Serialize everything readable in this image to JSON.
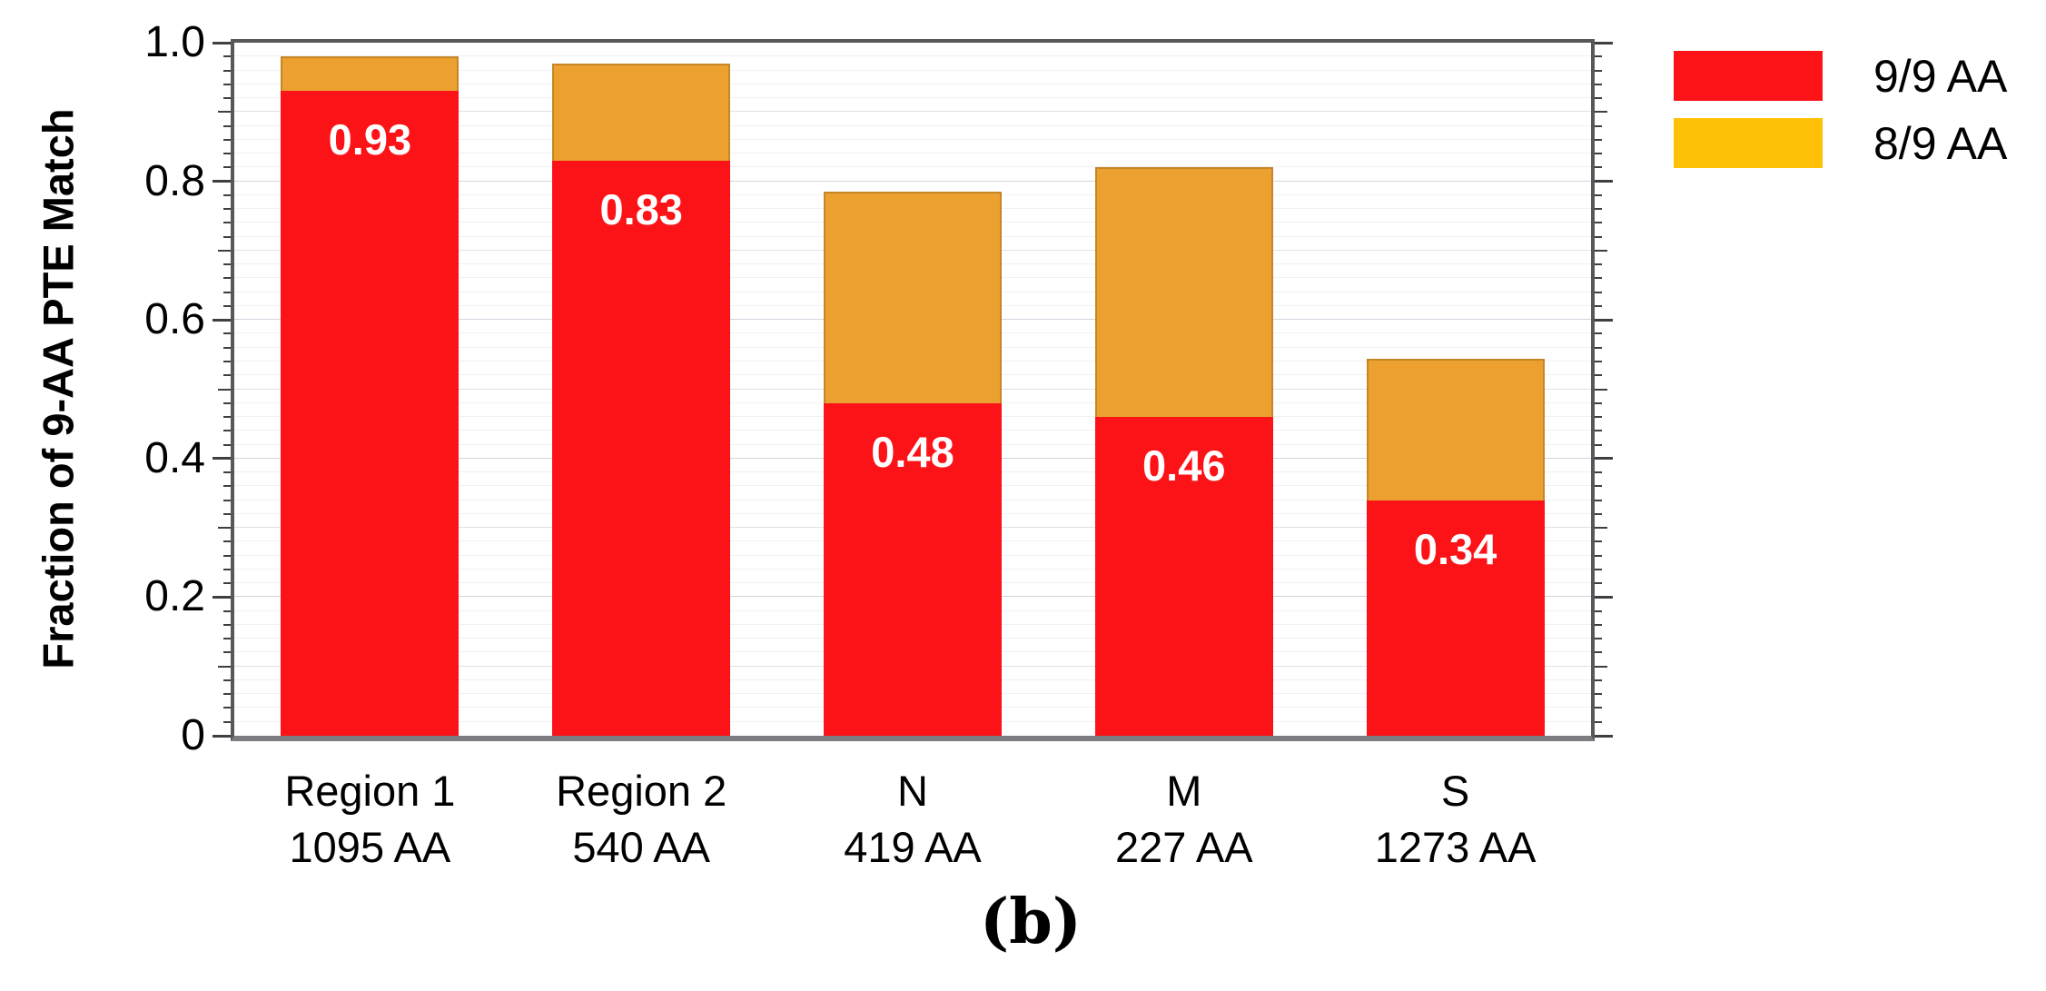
{
  "colors": {
    "red": "#FC1318",
    "bar_orange": "#EBA02F",
    "bar_orange_edge": "#C9882B",
    "legend_gold": "#FFC107",
    "axis_border": "#58585B",
    "axis_bottom": "#7D7D81",
    "grid_minor": "#F0F0F6",
    "grid_mid": "#E0E0EA",
    "grid_major": "#D4D4E0",
    "tick": "#3F3F42",
    "value_text": "#FFFFFF"
  },
  "y_axis": {
    "title": "Fraction of 9-AA PTE Match",
    "min": 0,
    "max": 1.0,
    "major_tick_values": [
      0,
      0.2,
      0.4,
      0.6,
      0.8,
      1.0
    ],
    "major_tick_labels": [
      "0",
      "0.2",
      "0.4",
      "0.6",
      "0.8",
      "1.0"
    ],
    "minor_tick_step": 0.02,
    "mid_tick_step": 0.1
  },
  "legend": {
    "items": [
      {
        "label": "9/9 AA",
        "color": "#FC1318"
      },
      {
        "label": "8/9 AA",
        "color": "#FFC107"
      }
    ]
  },
  "caption": "(b)",
  "chart_data": {
    "type": "bar",
    "stacked": true,
    "title": "",
    "xlabel": "",
    "ylabel": "Fraction of 9-AA PTE Match",
    "ylim": [
      0,
      1.0
    ],
    "grid": true,
    "legend_position": "top-right",
    "categories": [
      "Region 1",
      "Region 2",
      "N",
      "M",
      "S"
    ],
    "category_sublabels": [
      "1095 AA",
      "540 AA",
      "419 AA",
      "227 AA",
      "1273 AA"
    ],
    "series": [
      {
        "name": "9/9 AA",
        "color": "#FC1318",
        "values": [
          0.93,
          0.83,
          0.48,
          0.46,
          0.34
        ]
      },
      {
        "name": "8/9 AA",
        "color": "#EBA02F",
        "values": [
          0.05,
          0.14,
          0.305,
          0.36,
          0.205
        ]
      }
    ],
    "bar_value_labels": [
      "0.93",
      "0.83",
      "0.48",
      "0.46",
      "0.34"
    ],
    "stack_totals": [
      0.98,
      0.97,
      0.785,
      0.82,
      0.545
    ]
  }
}
